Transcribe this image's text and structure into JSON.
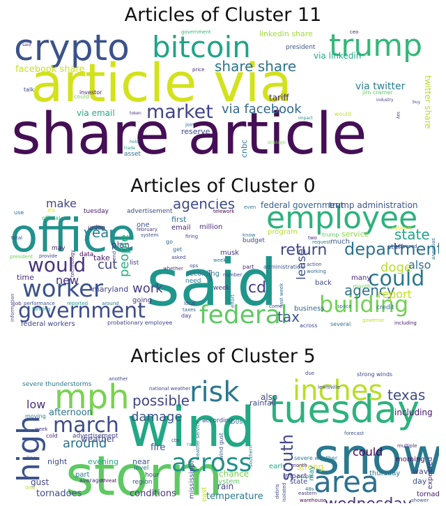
{
  "panels": [
    {
      "title": "Articles of Cluster 11",
      "words": [
        {
          "text": "share article",
          "color": "#440f54"
        },
        {
          "text": "article via",
          "color": "#d2e21b"
        },
        {
          "text": "crypto",
          "color": "#3b528b"
        },
        {
          "text": "bitcoin",
          "color": "#20a486"
        },
        {
          "text": "trump",
          "color": "#35b779"
        },
        {
          "text": "share share",
          "color": "#2c728e"
        },
        {
          "text": "market",
          "color": "#414487"
        },
        {
          "text": "via facebook",
          "color": "#31688e"
        },
        {
          "text": "facebook share",
          "color": "#c8e020"
        },
        {
          "text": "via twitter",
          "color": "#287d8e"
        },
        {
          "text": "via linkedin",
          "color": "#22a884"
        },
        {
          "text": "linkedin share",
          "color": "#a0da39"
        },
        {
          "text": "twitter share",
          "color": "#b5de2b"
        },
        {
          "text": "via email",
          "color": "#25ac82"
        },
        {
          "text": "reserve",
          "color": "#3e4a89"
        },
        {
          "text": "tariff",
          "color": "#472a7a"
        },
        {
          "text": "cnbc",
          "color": "#2a788e"
        },
        {
          "text": "jim cramer",
          "color": "#5ec962"
        },
        {
          "text": "president",
          "color": "#3b528b"
        },
        {
          "text": "government",
          "color": "#35b779"
        },
        {
          "text": "investor",
          "color": "#471164"
        },
        {
          "text": "talk",
          "color": "#3f4889"
        },
        {
          "text": "could",
          "color": "#7ad151"
        },
        {
          "text": "asset",
          "color": "#2c728e"
        },
        {
          "text": "join",
          "color": "#31688e"
        },
        {
          "text": "would",
          "color": "#c2df23"
        },
        {
          "text": "ceo",
          "color": "#481668"
        },
        {
          "text": "price",
          "color": "#482475"
        },
        {
          "text": "said",
          "color": "#46327e"
        },
        {
          "text": "token",
          "color": "#46337e"
        },
        {
          "text": "industry",
          "color": "#443a83"
        },
        {
          "text": "impact",
          "color": "#21918c"
        },
        {
          "text": "strategic",
          "color": "#7ad151"
        },
        {
          "text": "trade",
          "color": "#1fa187"
        },
        {
          "text": "hold",
          "color": "#23888e"
        },
        {
          "text": "buy",
          "color": "#404688"
        },
        {
          "text": "say",
          "color": "#481b6d"
        }
      ]
    },
    {
      "title": "Articles of Cluster 0",
      "words": [
        {
          "text": "said",
          "color": "#1f968b"
        },
        {
          "text": "office",
          "color": "#21918c"
        },
        {
          "text": "employee",
          "color": "#2db27d"
        },
        {
          "text": "federal",
          "color": "#5ec962"
        },
        {
          "text": "government",
          "color": "#3e4c8a"
        },
        {
          "text": "worker",
          "color": "#3b528b"
        },
        {
          "text": "building",
          "color": "#73d056"
        },
        {
          "text": "would",
          "color": "#46327e"
        },
        {
          "text": "could",
          "color": "#2a788e"
        },
        {
          "text": "department",
          "color": "#2c728e"
        },
        {
          "text": "agencies",
          "color": "#3e4a89"
        },
        {
          "text": "return",
          "color": "#3f4788"
        },
        {
          "text": "agency",
          "color": "#2d708e"
        },
        {
          "text": "state",
          "color": "#20a486"
        },
        {
          "text": "tax",
          "color": "#3a548c"
        },
        {
          "text": "year",
          "color": "#26818e"
        },
        {
          "text": "doge",
          "color": "#b8de29"
        },
        {
          "text": "cut",
          "color": "#404387"
        },
        {
          "text": "people",
          "color": "#2ab07f"
        },
        {
          "text": "work",
          "color": "#443b84"
        },
        {
          "text": "cd",
          "color": "#433e85"
        },
        {
          "text": "make",
          "color": "#414487"
        },
        {
          "text": "report",
          "color": "#c2df23"
        },
        {
          "text": "also",
          "color": "#2f6c8e"
        },
        {
          "text": "lease",
          "color": "#3d4e8a"
        },
        {
          "text": "new",
          "color": "#46307e"
        },
        {
          "text": "federal government",
          "color": "#35608d"
        },
        {
          "text": "trump administration",
          "color": "#3b528b"
        },
        {
          "text": "tuesday",
          "color": "#481668"
        },
        {
          "text": "advertisement",
          "color": "#3f4889"
        },
        {
          "text": "union",
          "color": "#482173"
        },
        {
          "text": "maryland",
          "color": "#414287"
        },
        {
          "text": "plan",
          "color": "#424086"
        },
        {
          "text": "million",
          "color": "#482878"
        },
        {
          "text": "email",
          "color": "#482576"
        },
        {
          "text": "first",
          "color": "#2c728e"
        },
        {
          "text": "service",
          "color": "#8bd646"
        },
        {
          "text": "program",
          "color": "#b5de2b"
        },
        {
          "text": "musk",
          "color": "#472d7b"
        },
        {
          "text": "take",
          "color": "#481a6c"
        },
        {
          "text": "time",
          "color": "#472c7a"
        },
        {
          "text": "according",
          "color": "#2a788e"
        },
        {
          "text": "much",
          "color": "#3b528b"
        },
        {
          "text": "many",
          "color": "#482475"
        },
        {
          "text": "back",
          "color": "#3e4989"
        },
        {
          "text": "business",
          "color": "#32658e"
        },
        {
          "text": "staff",
          "color": "#3a538b"
        },
        {
          "text": "going",
          "color": "#46337e"
        },
        {
          "text": "week",
          "color": "#463480"
        },
        {
          "text": "budget",
          "color": "#3e4c8a"
        },
        {
          "text": "data",
          "color": "#440154"
        },
        {
          "text": "list",
          "color": "#463480"
        },
        {
          "text": "federal workers",
          "color": "#414287"
        },
        {
          "text": "information",
          "color": "#3f4788"
        },
        {
          "text": "credit",
          "color": "#2f6c8e"
        },
        {
          "text": "month",
          "color": "#7ad151"
        },
        {
          "text": "part",
          "color": "#482878"
        },
        {
          "text": "may",
          "color": "#481b6d"
        },
        {
          "text": "one",
          "color": "#3b528b"
        },
        {
          "text": "need",
          "color": "#2a788e"
        },
        {
          "text": "day",
          "color": "#433e85"
        },
        {
          "text": "across",
          "color": "#3e4989"
        },
        {
          "text": "several",
          "color": "#2c728e"
        },
        {
          "text": "including",
          "color": "#481668"
        },
        {
          "text": "governor",
          "color": "#b8de29"
        },
        {
          "text": "use",
          "color": "#2d708e"
        },
        {
          "text": "irs",
          "color": "#d8e219"
        },
        {
          "text": "official",
          "color": "#35b779"
        },
        {
          "text": "total",
          "color": "#3f4788"
        },
        {
          "text": "technology",
          "color": "#472a7a"
        },
        {
          "text": "president",
          "color": "#6ece58"
        },
        {
          "text": "provide",
          "color": "#414487"
        },
        {
          "text": "end",
          "color": "#433e85"
        },
        {
          "text": "week",
          "color": "#2a788e"
        },
        {
          "text": "job",
          "color": "#46307e"
        },
        {
          "text": "performance",
          "color": "#3e4a89"
        },
        {
          "text": "reported",
          "color": "#21918c"
        },
        {
          "text": "around",
          "color": "#2c728e"
        },
        {
          "text": "probationary employee",
          "color": "#414487"
        },
        {
          "text": "telework",
          "color": "#440154"
        },
        {
          "text": "even",
          "color": "#2a788e"
        },
        {
          "text": "national",
          "color": "#dde318"
        },
        {
          "text": "proposed",
          "color": "#404387"
        },
        {
          "text": "action",
          "color": "#3e4c8a"
        },
        {
          "text": "working",
          "color": "#31688e"
        },
        {
          "text": "sensitive",
          "color": "#2d708e"
        },
        {
          "text": "last week",
          "color": "#2f6c8e"
        },
        {
          "text": "administration",
          "color": "#3b528b"
        },
        {
          "text": "request",
          "color": "#2a788e"
        },
        {
          "text": "trump",
          "color": "#5ec962"
        },
        {
          "text": "two",
          "color": "#482878"
        },
        {
          "text": "system",
          "color": "#3e4a89"
        },
        {
          "text": "february",
          "color": "#46337e"
        },
        {
          "text": "firing",
          "color": "#3f4788"
        },
        {
          "text": "go",
          "color": "#31688e"
        },
        {
          "text": "get",
          "color": "#2c728e"
        },
        {
          "text": "asked",
          "color": "#3f4889"
        },
        {
          "text": "used",
          "color": "#3f4788"
        },
        {
          "text": "know",
          "color": "#2a788e"
        },
        {
          "text": "number",
          "color": "#424086"
        },
        {
          "text": "effort",
          "color": "#2a788e"
        },
        {
          "text": "come",
          "color": "#3e4989"
        },
        {
          "text": "space",
          "color": "#2c728e"
        },
        {
          "text": "local",
          "color": "#443a83"
        },
        {
          "text": "taxes",
          "color": "#35608d"
        },
        {
          "text": "whether",
          "color": "#46337e"
        },
        {
          "text": "funding",
          "color": "#21918c"
        },
        {
          "text": "ops",
          "color": "#3b528b"
        }
      ]
    },
    {
      "title": "Articles of Cluster 5",
      "words": [
        {
          "text": "storm",
          "color": "#5ec962"
        },
        {
          "text": "wind",
          "color": "#22a884"
        },
        {
          "text": "snow",
          "color": "#2a788e"
        },
        {
          "text": "tuesday",
          "color": "#2db27d"
        },
        {
          "text": "high",
          "color": "#3b528b"
        },
        {
          "text": "area",
          "color": "#2c728e"
        },
        {
          "text": "inches",
          "color": "#b8de29"
        },
        {
          "text": "mph",
          "color": "#7ad151"
        },
        {
          "text": "risk",
          "color": "#2a788e"
        },
        {
          "text": "march",
          "color": "#3e4c8a"
        },
        {
          "text": "across",
          "color": "#21918c"
        },
        {
          "text": "south",
          "color": "#3f4788"
        },
        {
          "text": "texas",
          "color": "#3e4a89"
        },
        {
          "text": "wednesday",
          "color": "#46337e"
        },
        {
          "text": "possible",
          "color": "#414487"
        },
        {
          "text": "damage",
          "color": "#3b528b"
        },
        {
          "text": "around",
          "color": "#2c728e"
        },
        {
          "text": "could",
          "color": "#440154"
        },
        {
          "text": "low",
          "color": "#46307e"
        },
        {
          "text": "afternoon",
          "color": "#2c728e"
        },
        {
          "text": "strong",
          "color": "#dde318"
        },
        {
          "text": "weather",
          "color": "#414487"
        },
        {
          "text": "fire",
          "color": "#3b528b"
        },
        {
          "text": "including",
          "color": "#481668"
        },
        {
          "text": "also",
          "color": "#3f4889"
        },
        {
          "text": "rainfall",
          "color": "#3e4a89"
        },
        {
          "text": "tornadoes",
          "color": "#3e4c8a"
        },
        {
          "text": "conditions",
          "color": "#46337e"
        },
        {
          "text": "temperature",
          "color": "#2a788e"
        },
        {
          "text": "rain",
          "color": "#404387"
        },
        {
          "text": "chance",
          "color": "#7ad151"
        },
        {
          "text": "system",
          "color": "#5ec962"
        },
        {
          "text": "gust",
          "color": "#414487"
        },
        {
          "text": "evening",
          "color": "#22a884"
        },
        {
          "text": "night",
          "color": "#3e4a89"
        },
        {
          "text": "near",
          "color": "#3b528b"
        },
        {
          "text": "severe thunderstorms",
          "color": "#2a788e"
        },
        {
          "text": "strong winds",
          "color": "#3f4788"
        },
        {
          "text": "expected",
          "color": "#46337e"
        },
        {
          "text": "morning",
          "color": "#440154"
        },
        {
          "text": "wave",
          "color": "#414487"
        },
        {
          "text": "day",
          "color": "#3b528b"
        },
        {
          "text": "thursday",
          "color": "#2a788e"
        },
        {
          "text": "tornado",
          "color": "#481668"
        },
        {
          "text": "impact",
          "color": "#46307e"
        },
        {
          "text": "state",
          "color": "#3e4c8a"
        },
        {
          "text": "may",
          "color": "#21918c"
        },
        {
          "text": "mississippi",
          "color": "#3e4a89"
        },
        {
          "text": "east",
          "color": "#c2df23"
        },
        {
          "text": "hour",
          "color": "#414487"
        },
        {
          "text": "level",
          "color": "#2c728e"
        },
        {
          "text": "region",
          "color": "#3b528b"
        },
        {
          "text": "average",
          "color": "#46337e"
        },
        {
          "text": "threat",
          "color": "#440154"
        },
        {
          "text": "part",
          "color": "#2a788e"
        },
        {
          "text": "one",
          "color": "#b5de2b"
        },
        {
          "text": "line",
          "color": "#3f4788"
        },
        {
          "text": "cold",
          "color": "#481668"
        },
        {
          "text": "week",
          "color": "#46307e"
        },
        {
          "text": "moving",
          "color": "#2a788e"
        },
        {
          "text": "advertisement",
          "color": "#414487"
        },
        {
          "text": "according",
          "color": "#3e4c8a"
        },
        {
          "text": "50s",
          "color": "#2c728e"
        },
        {
          "text": "early",
          "color": "#22a884"
        },
        {
          "text": "forecast",
          "color": "#3b528b"
        },
        {
          "text": "severe weather",
          "color": "#2a788e"
        },
        {
          "text": "multiple",
          "color": "#46337e"
        },
        {
          "text": "lewisville",
          "color": "#3e4a89"
        },
        {
          "text": "national weather",
          "color": "#414487"
        },
        {
          "text": "another",
          "color": "#3f4788"
        },
        {
          "text": "southern",
          "color": "#2a788e"
        },
        {
          "text": "warehouse",
          "color": "#440154"
        },
        {
          "text": "eastern",
          "color": "#46337e"
        },
        {
          "text": "shower",
          "color": "#3b528b"
        },
        {
          "text": "48s",
          "color": "#2c728e"
        },
        {
          "text": "isolated",
          "color": "#3e4c8a"
        },
        {
          "text": "debris",
          "color": "#414487"
        },
        {
          "text": "due",
          "color": "#3f4889"
        },
        {
          "text": "month",
          "color": "#46307e"
        },
        {
          "text": "people",
          "color": "#2a788e"
        },
        {
          "text": "cbs",
          "color": "#3e4a89"
        },
        {
          "text": "rate",
          "color": "#22a884"
        },
        {
          "text": "wind gust",
          "color": "#3b528b"
        },
        {
          "text": "weather service",
          "color": "#2c728e"
        }
      ]
    }
  ]
}
